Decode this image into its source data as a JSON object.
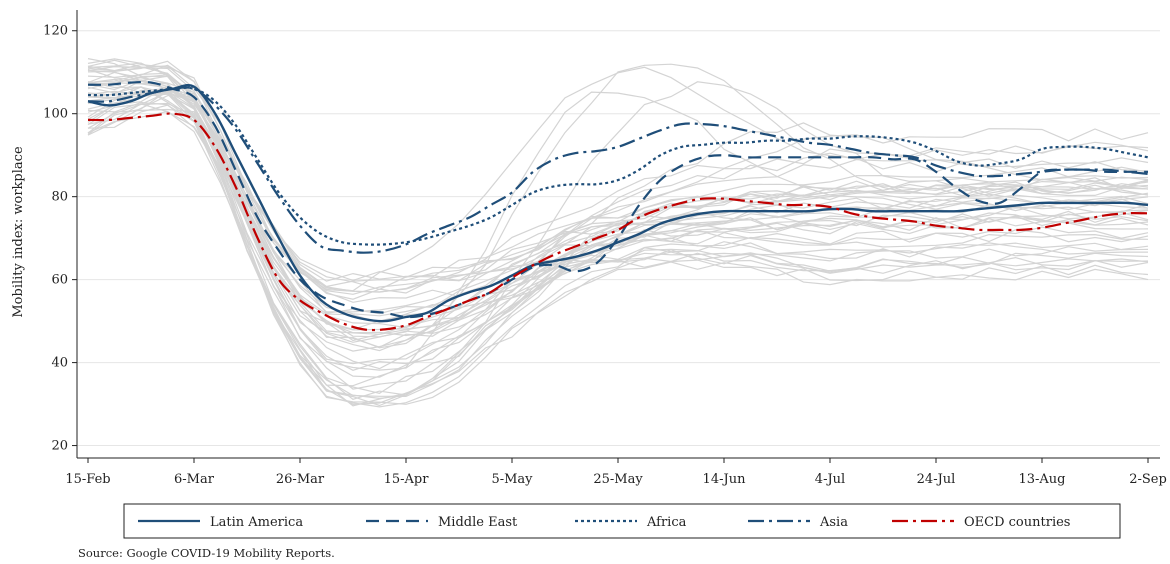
{
  "chart_data": {
    "type": "line",
    "title": "",
    "xlabel": "",
    "ylabel": "Mobility index: workplace",
    "source": "Source: Google COVID-19 Mobility Reports.",
    "x_ticks": [
      "15-Feb",
      "6-Mar",
      "26-Mar",
      "15-Apr",
      "5-May",
      "25-May",
      "14-Jun",
      "4-Jul",
      "24-Jul",
      "13-Aug",
      "2-Sep"
    ],
    "x_tick_days": [
      0,
      20,
      40,
      60,
      80,
      100,
      120,
      140,
      160,
      180,
      200
    ],
    "x_range": [
      0,
      200
    ],
    "ylim": [
      17,
      125
    ],
    "y_ticks": [
      20,
      40,
      60,
      80,
      100,
      120
    ],
    "grid": "horizontal",
    "legend_position": "bottom",
    "series": [
      {
        "name": "Latin America",
        "color": "#1f4e79",
        "style": "solid",
        "x": [
          0,
          4,
          8,
          12,
          16,
          20,
          24,
          28,
          32,
          36,
          40,
          44,
          48,
          52,
          56,
          60,
          64,
          68,
          72,
          76,
          80,
          84,
          88,
          92,
          96,
          100,
          104,
          108,
          112,
          116,
          120,
          124,
          128,
          132,
          136,
          140,
          144,
          148,
          152,
          156,
          160,
          164,
          168,
          172,
          176,
          180,
          184,
          188,
          192,
          196,
          200
        ],
        "y": [
          103,
          102,
          103,
          105,
          106,
          106.5,
          100,
          90,
          80,
          70,
          61,
          55,
          52,
          50.5,
          50,
          51,
          52,
          55,
          57,
          58.5,
          61,
          63.5,
          64.5,
          65.5,
          67,
          69,
          71,
          73.5,
          75,
          76,
          76.5,
          76.5,
          76.5,
          76.5,
          76.5,
          77,
          77,
          76.5,
          76.5,
          76.5,
          76.5,
          76.5,
          77,
          77.5,
          78,
          78.5,
          78.5,
          78.5,
          78.5,
          78.5,
          78
        ]
      },
      {
        "name": "Middle East",
        "color": "#1f4e79",
        "style": "dashed",
        "x": [
          0,
          4,
          8,
          12,
          16,
          20,
          24,
          28,
          32,
          36,
          40,
          44,
          48,
          52,
          56,
          60,
          64,
          68,
          72,
          76,
          80,
          84,
          88,
          92,
          96,
          100,
          104,
          108,
          112,
          116,
          120,
          124,
          128,
          132,
          136,
          140,
          144,
          148,
          152,
          156,
          160,
          164,
          168,
          172,
          176,
          180,
          184,
          188,
          192,
          196,
          200
        ],
        "y": [
          107,
          107,
          107.5,
          107.5,
          106,
          104,
          97,
          86,
          75,
          67,
          60,
          56,
          54,
          52.5,
          52,
          51,
          51.5,
          53,
          55,
          57,
          60,
          63,
          63.5,
          62,
          64,
          70,
          78,
          84,
          87.5,
          89.5,
          90,
          89.5,
          89.5,
          89.5,
          89.5,
          89.5,
          89.5,
          89.5,
          89,
          89,
          86,
          82,
          79,
          78.5,
          82,
          86,
          86.5,
          86.5,
          86,
          86,
          86
        ]
      },
      {
        "name": "Africa",
        "color": "#1f4e79",
        "style": "dotted",
        "x": [
          0,
          4,
          8,
          12,
          16,
          20,
          24,
          28,
          32,
          36,
          40,
          44,
          48,
          52,
          56,
          60,
          64,
          68,
          72,
          76,
          80,
          84,
          88,
          92,
          96,
          100,
          104,
          108,
          112,
          116,
          120,
          124,
          128,
          132,
          136,
          140,
          144,
          148,
          152,
          156,
          160,
          164,
          168,
          172,
          176,
          180,
          184,
          188,
          192,
          196,
          200
        ],
        "y": [
          104.5,
          104.5,
          105,
          105.5,
          106,
          106,
          103,
          97,
          89,
          81,
          75,
          71,
          69,
          68.5,
          68.5,
          69,
          70,
          71.5,
          73,
          75,
          78,
          81,
          82.5,
          83,
          83,
          84,
          86.5,
          90,
          92,
          92.5,
          93,
          93,
          93.5,
          93.5,
          94,
          94,
          94.5,
          94.5,
          94,
          93,
          91,
          88.5,
          87.5,
          88,
          89,
          91.5,
          92,
          92,
          91.5,
          90.5,
          89.5
        ]
      },
      {
        "name": "Asia",
        "color": "#1f4e79",
        "style": "dashdot",
        "x": [
          0,
          4,
          8,
          12,
          16,
          20,
          24,
          28,
          32,
          36,
          40,
          44,
          48,
          52,
          56,
          60,
          64,
          68,
          72,
          76,
          80,
          84,
          88,
          92,
          96,
          100,
          104,
          108,
          112,
          116,
          120,
          124,
          128,
          132,
          136,
          140,
          144,
          148,
          152,
          156,
          160,
          164,
          168,
          172,
          176,
          180,
          184,
          188,
          192,
          196,
          200
        ],
        "y": [
          103,
          103,
          104,
          105,
          106,
          106,
          102,
          96,
          88,
          80,
          73,
          68,
          67,
          66.5,
          67,
          68.5,
          71,
          73,
          75,
          78,
          81,
          86,
          89,
          90.5,
          91,
          92,
          94,
          96,
          97.5,
          97.5,
          97,
          96,
          95,
          94,
          93,
          92.5,
          91.5,
          90.5,
          90,
          89.5,
          87.5,
          86,
          85,
          85,
          85.5,
          86,
          86.5,
          86.5,
          86.5,
          86,
          85.5
        ]
      },
      {
        "name": "OECD countries",
        "color": "#c00000",
        "style": "dashdot",
        "x": [
          0,
          4,
          8,
          12,
          16,
          20,
          24,
          28,
          32,
          36,
          40,
          44,
          48,
          52,
          56,
          60,
          64,
          68,
          72,
          76,
          80,
          84,
          88,
          92,
          96,
          100,
          104,
          108,
          112,
          116,
          120,
          124,
          128,
          132,
          136,
          140,
          144,
          148,
          152,
          156,
          160,
          164,
          168,
          172,
          176,
          180,
          184,
          188,
          192,
          196,
          200
        ],
        "y": [
          98.5,
          98.5,
          99,
          99.5,
          100,
          98.5,
          92,
          82,
          70,
          60,
          55,
          52,
          49.5,
          48,
          48,
          49,
          51,
          53,
          55,
          57,
          60.5,
          63.5,
          66,
          68,
          70,
          72,
          75,
          77,
          78.5,
          79.5,
          79.5,
          79,
          78.5,
          78,
          78,
          77.5,
          76,
          75,
          74.5,
          74,
          73,
          72.5,
          72,
          72,
          72,
          72.5,
          73.5,
          74.5,
          75.5,
          76,
          76
        ]
      }
    ]
  }
}
